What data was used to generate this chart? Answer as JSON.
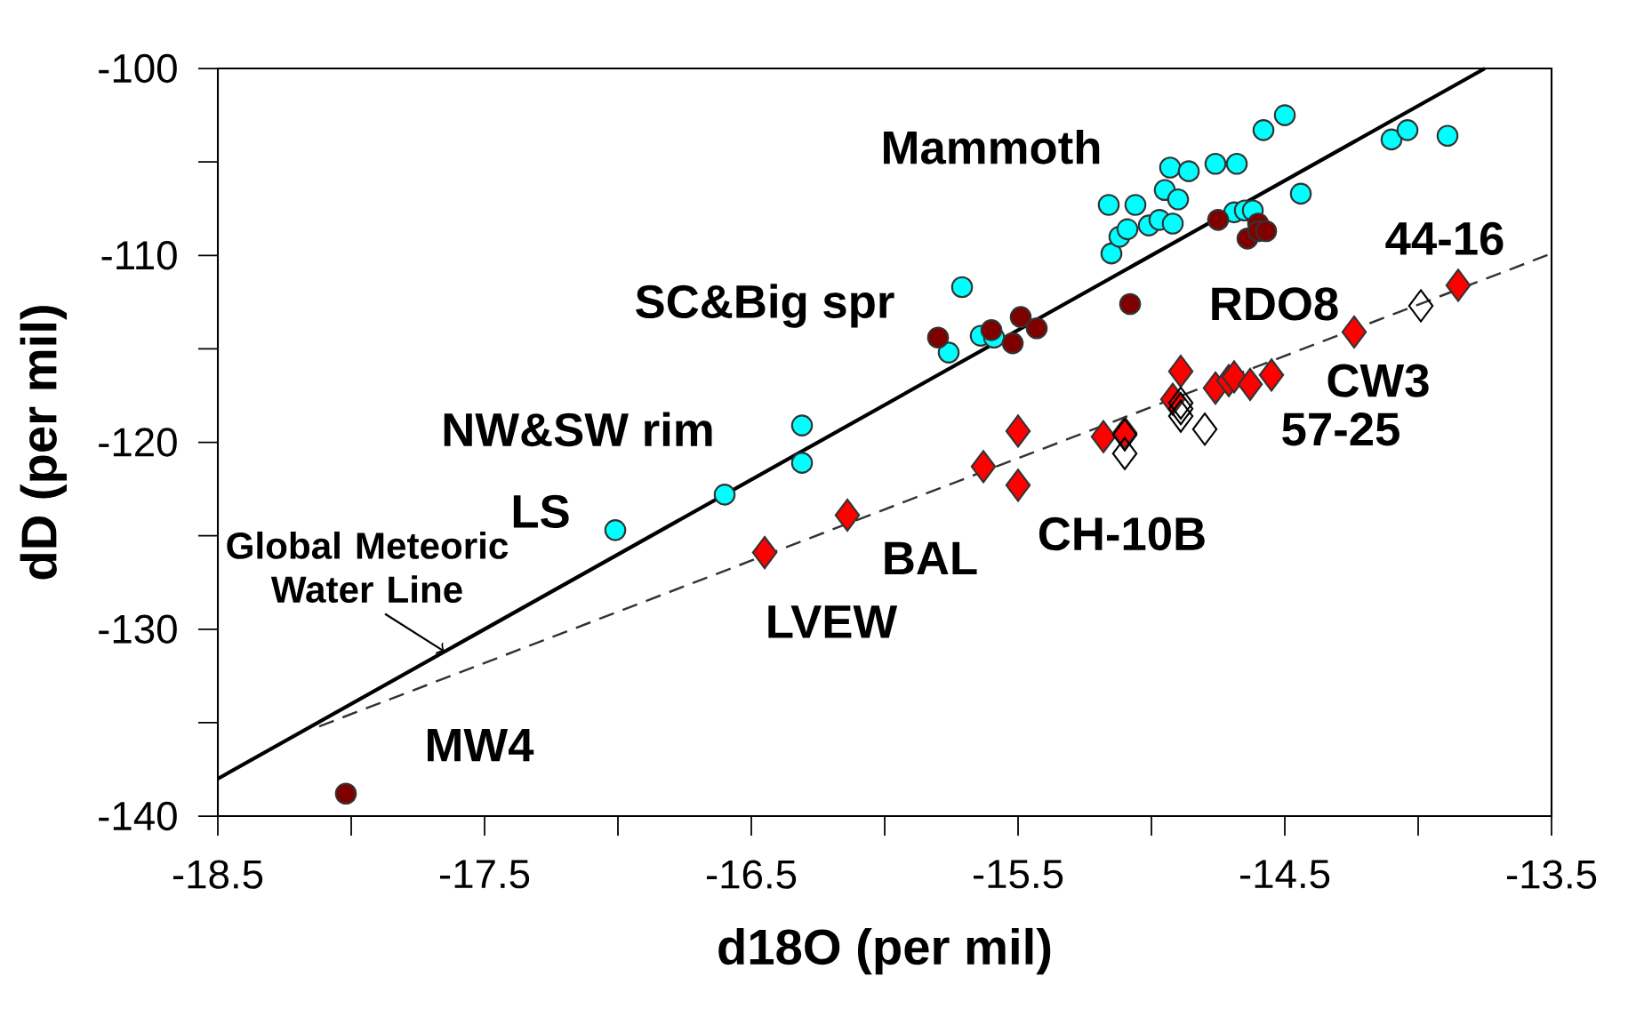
{
  "chart_data": {
    "type": "scatter",
    "xlabel": "d18O (per mil)",
    "ylabel": "dD (per mil)",
    "xlim": [
      -18.5,
      -13.5
    ],
    "ylim": [
      -140,
      -100
    ],
    "xticks": [
      -18.5,
      -17.5,
      -16.5,
      -15.5,
      -14.5,
      -13.5
    ],
    "yticks": [
      -140,
      -130,
      -120,
      -110,
      -100
    ],
    "grid": false,
    "legend": false,
    "series": [
      {
        "type": "line",
        "color": "#000000",
        "marker": "none",
        "line_style": "solid",
        "x": [
          -18.5,
          -13.75
        ],
        "values": [
          -138,
          -100
        ]
      },
      {
        "type": "line",
        "color": "#333333",
        "marker": "none",
        "line_style": "dashed",
        "x": [
          -18.12,
          -13.5
        ],
        "values": [
          -135.2,
          -109.9
        ]
      },
      {
        "color": "#00ffff",
        "marker": "circle",
        "x": [
          -17.01,
          -16.6,
          -16.31,
          -16.31,
          -15.76,
          -15.71,
          -15.64,
          -15.59,
          -15.16,
          -15.15,
          -15.12,
          -15.09,
          -15.06,
          -15.01,
          -14.97,
          -14.95,
          -14.93,
          -14.92,
          -14.9,
          -14.86,
          -14.76,
          -14.69,
          -14.68,
          -14.65,
          -14.62,
          -14.58,
          -14.5,
          -14.44,
          -14.1,
          -14.04,
          -13.89
        ],
        "values": [
          -124.7,
          -122.8,
          -119.1,
          -121.1,
          -115.2,
          -111.7,
          -114.3,
          -114.4,
          -107.3,
          -109.9,
          -109.0,
          -108.6,
          -107.3,
          -108.4,
          -108.1,
          -106.5,
          -105.3,
          -108.3,
          -107.0,
          -105.5,
          -105.1,
          -107.7,
          -105.1,
          -107.6,
          -107.6,
          -103.3,
          -102.5,
          -106.7,
          -103.8,
          -103.3,
          -103.6
        ]
      },
      {
        "color": "#800000",
        "marker": "circle",
        "x": [
          -18.02,
          -15.8,
          -15.6,
          -15.52,
          -15.49,
          -15.43,
          -15.08,
          -14.75,
          -14.64,
          -14.6,
          -14.6,
          -14.57
        ],
        "values": [
          -138.8,
          -114.4,
          -114.0,
          -114.7,
          -113.3,
          -113.9,
          -112.6,
          -108.1,
          -109.1,
          -108.3,
          -108.7,
          -108.7
        ]
      },
      {
        "color": "#ff0000",
        "marker": "diamond",
        "x": [
          -16.45,
          -16.14,
          -15.63,
          -15.5,
          -15.5,
          -15.18,
          -15.1,
          -14.92,
          -14.89,
          -14.76,
          -14.71,
          -14.69,
          -14.63,
          -14.55,
          -14.24,
          -13.85
        ],
        "values": [
          -125.9,
          -123.9,
          -121.3,
          -119.4,
          -122.3,
          -119.7,
          -119.5,
          -117.7,
          -116.2,
          -117.1,
          -116.7,
          -116.5,
          -116.9,
          -116.4,
          -114.1,
          -111.6
        ]
      },
      {
        "color": "#000000",
        "marker": "diamond",
        "x": [
          -15.1,
          -15.1,
          -14.89,
          -14.89,
          -14.89,
          -14.8,
          -13.99
        ],
        "values": [
          -120.6,
          -119.6,
          -117.9,
          -118.2,
          -118.6,
          -119.3,
          -112.7
        ]
      }
    ],
    "annotations": [
      "Mammoth",
      "SC&Big spr",
      "NW&SW rim",
      "LS",
      "MW4",
      "LVEW",
      "BAL",
      "CH-10B",
      "57-25",
      "CW3",
      "RDO8",
      "44-16",
      {
        "text": "Global Meteoric Water Line",
        "x": -17.65,
        "y": -131.2
      }
    ]
  }
}
